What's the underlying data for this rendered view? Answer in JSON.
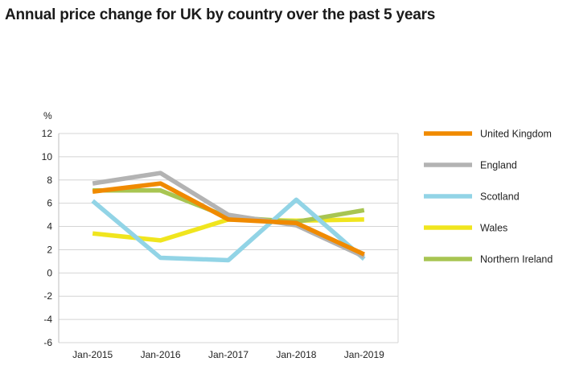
{
  "chart_data": {
    "type": "line",
    "title": "Annual price change for UK by country over the past 5 years",
    "ylabel": "%",
    "xlabel": "",
    "categories": [
      "Jan-2015",
      "Jan-2016",
      "Jan-2017",
      "Jan-2018",
      "Jan-2019"
    ],
    "ylim": [
      -6,
      12
    ],
    "yticks": [
      12,
      10,
      8,
      6,
      4,
      2,
      0,
      -2,
      -4,
      -6
    ],
    "grid": true,
    "legend_position": "right",
    "series": [
      {
        "name": "Wales",
        "color": "#f0e51e",
        "values": [
          3.4,
          2.8,
          4.6,
          4.5,
          4.6
        ]
      },
      {
        "name": "Northern Ireland",
        "color": "#a8c552",
        "values": [
          7.1,
          7.1,
          4.8,
          4.4,
          5.4
        ]
      },
      {
        "name": "Scotland",
        "color": "#92d4e6",
        "values": [
          6.2,
          1.3,
          1.1,
          6.3,
          1.2
        ]
      },
      {
        "name": "England",
        "color": "#b3b3b3",
        "values": [
          7.7,
          8.6,
          5.0,
          4.1,
          1.4
        ]
      },
      {
        "name": "United Kingdom",
        "color": "#f08a00",
        "values": [
          7.0,
          7.7,
          4.6,
          4.3,
          1.6
        ]
      }
    ],
    "legend_order": [
      "United Kingdom",
      "England",
      "Scotland",
      "Wales",
      "Northern Ireland"
    ]
  }
}
